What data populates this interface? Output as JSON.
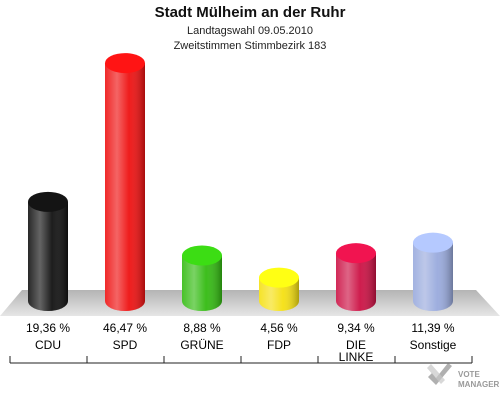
{
  "header": {
    "title": "Stadt Mülheim an der Ruhr",
    "subtitle1": "Landtagswahl 09.05.2010",
    "subtitle2": "Zweitstimmen Stimmbezirk 183"
  },
  "branding": {
    "line1": "VOTE",
    "line2": "MANAGER"
  },
  "chart_data": {
    "type": "bar",
    "title": "Stadt Mülheim an der Ruhr",
    "subtitle": "Landtagswahl 09.05.2010 / Zweitstimmen Stimmbezirk 183",
    "xlabel": "",
    "ylabel": "",
    "unit": "%",
    "ylim": [
      0,
      50
    ],
    "grid": false,
    "legend": "none",
    "categories": [
      "CDU",
      "SPD",
      "GRÜNE",
      "FDP",
      "DIE LINKE",
      "Sonstige"
    ],
    "category_lines": [
      [
        "CDU"
      ],
      [
        "SPD"
      ],
      [
        "GRÜNE"
      ],
      [
        "FDP"
      ],
      [
        "DIE",
        "LINKE"
      ],
      [
        "Sonstige"
      ]
    ],
    "values": [
      19.36,
      46.47,
      8.88,
      4.56,
      9.34,
      11.39
    ],
    "labels": [
      "19,36 %",
      "46,47 %",
      "8,88 %",
      "4,56 %",
      "9,34 %",
      "11,39 %"
    ],
    "colors": [
      "#111111",
      "#ee1111",
      "#33bb11",
      "#f5e011",
      "#cc1144",
      "#99aadd"
    ]
  }
}
